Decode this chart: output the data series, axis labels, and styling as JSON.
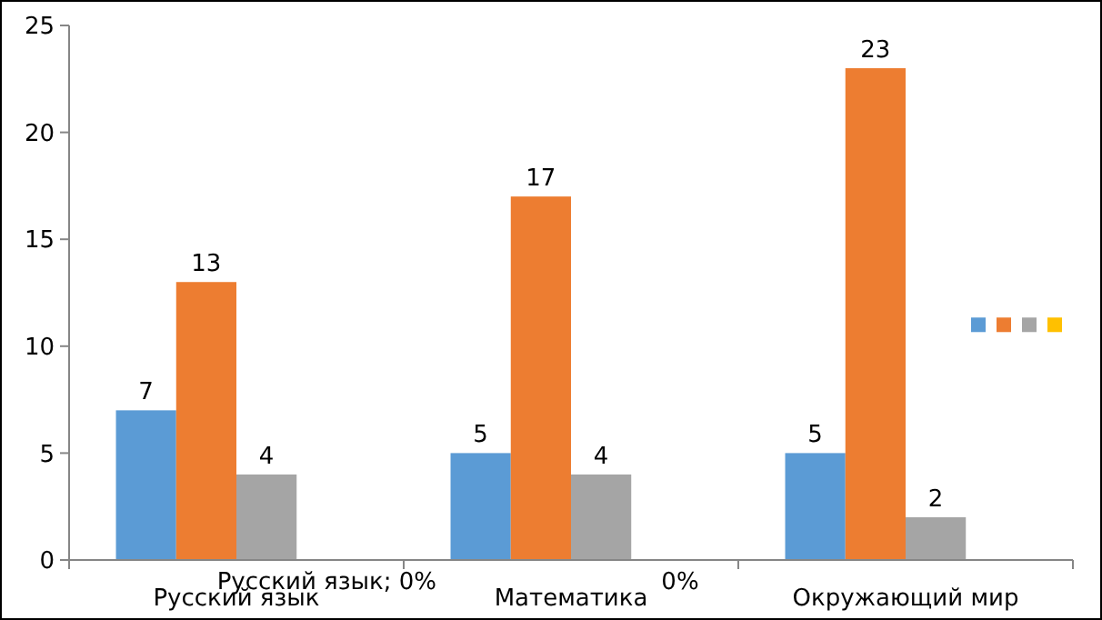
{
  "chart_data": {
    "type": "bar",
    "categories": [
      "Русский язык",
      "Математика",
      "Окружающий мир"
    ],
    "series": [
      {
        "color": "#5b9bd5",
        "values": [
          7,
          5,
          5
        ]
      },
      {
        "color": "#ed7d31",
        "values": [
          13,
          17,
          23
        ]
      },
      {
        "color": "#a5a5a5",
        "values": [
          4,
          4,
          2
        ]
      },
      {
        "color": "#ffc000",
        "values": [
          0,
          0,
          0
        ],
        "value_labels": [
          "Русский язык; 0%",
          "0%",
          null
        ]
      }
    ],
    "ylim": [
      0,
      25
    ],
    "yticks": [
      0,
      5,
      10,
      15,
      20,
      25
    ],
    "data_labels": true,
    "grid": false
  }
}
